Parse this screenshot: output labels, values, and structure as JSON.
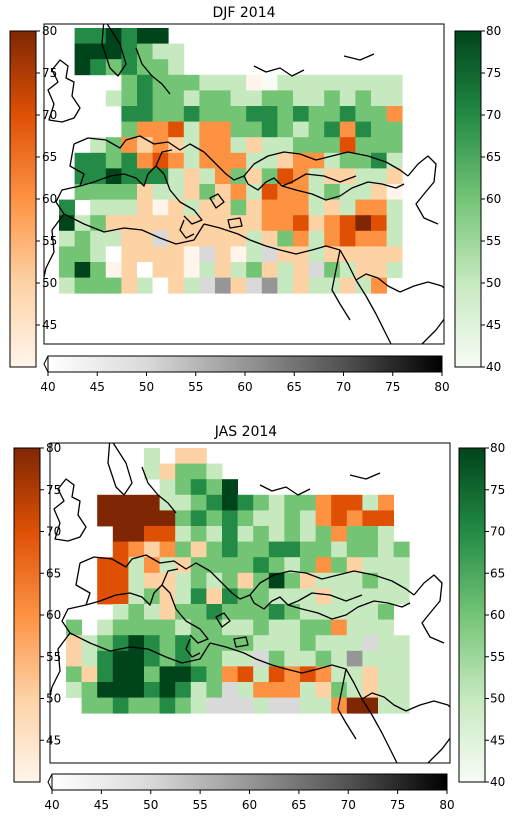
{
  "colors": {
    "oranges": [
      "#fff5eb",
      "#fdd2a5",
      "#fd9243",
      "#df5005",
      "#7f2704"
    ],
    "greens": [
      "#f7fcf5",
      "#c7e9c0",
      "#74c476",
      "#238b45",
      "#00441b"
    ],
    "greys": [
      "#ffffff",
      "#d9d9d9",
      "#969696",
      "#525252",
      "#000000"
    ],
    "coast": "#000000",
    "frame": "#000000"
  },
  "chart_data": [
    {
      "type": "heatmap",
      "title": "DJF 2014",
      "region": "Europe, North Africa and Middle East",
      "value_range": [
        40,
        80
      ],
      "colorbars": [
        {
          "side": "left",
          "colormap": "Oranges",
          "ticks": [
            "45",
            "50",
            "55",
            "60",
            "65",
            "70",
            "75",
            "80"
          ]
        },
        {
          "side": "right",
          "colormap": "Greens",
          "ticks": [
            "40",
            "45",
            "50",
            "55",
            "60",
            "65",
            "70",
            "75",
            "80"
          ]
        },
        {
          "side": "bottom",
          "colormap": "Greys",
          "ticks": [
            "40",
            "45",
            "50",
            "55",
            "60",
            "65",
            "70",
            "75",
            "80"
          ]
        }
      ],
      "grid_legend": "o = Oranges, g = Greens, a = Greys, . = no data; value 0-4 low to high",
      "grid": [
        "...... g3 g3 g4 g3 g4 g4 . . . . . . . . . . . .",
        "...... g4 g4 g4 g3 g2 g1 g1 . . . . . . . . . . .",
        "...... g4 g3 g2 g3 g2 g2 g1 . . . . . . . . . . .",
        ". . . . g2 g3 g2 g2 g2 g1 g1 g1 o0 g0 g1 g1 g1 g1 g1 g1 g1 g1",
        ". . . g1 g2 g3 g2 g2 g1 g2 g2 g1 g1 g2 g2 g1 g1 g2 g1 g2 g1 g1",
        ". . . . g3 g3 g2 g2 g3 g2 g2 g2 g3 g3 g2 g3 g2 g2 g3 g2 g2 o2",
        ". . . . g2 o2 o2 o3 g1 o2 o2 g2 g2 g3 g2 g1 g2 g3 o2 g3 g2 g2",
        ". . g1 g2 o2 o1 o2 o1 g1 o2 o2 g1 o1 g1 g1 g2 g2 g2 o3 g2 g2 g2",
        ". g3 g3 g2 g3 o2 o3 o2 g1 o2 o2 o2 g1 g1 o1 o2 o2 g1 g2 g2 g3 g1",
        ". g3 g3 g4 g3 g3 g3 g1 o1 g1 o2 g2 o1 g2 o3 o2 g1 o1 o1 g1 g1 o1",
        ". g2 g2 g2 g2 o1 g1 g1 o1 g2 o1 o2 g1 o3 o2 o2 g1 g2 g1 g1 o1 o0",
        "g3 . g1 g1 g1 o1 o0 o1 g1 o1 o1 g2 o1 o2 o2 o2 g1 o1 g1 o2 o2 g1",
        "g4 g1 g2 o1 o1 o1 o1 o1 o1 o1 o1 o1 o1 o2 o2 o3 o1 o2 o3 o4 o3 g1",
        "g1 g2 g1 g1 o1 o1 a1 o1 o1 o1 o1 o1 g1 o1 g2 o2 g1 o2 o3 o2 o2 g1",
        "g2 g2 g1 a0 o1 o1 o1 o1 o0 a1 o1 o0 g1 a1 o1 o1 g1 o1 o1 o1 o1 o1",
        "g2 g4 g2 o0 o1 a0 o1 o1 o0 g1 o1 g1 g2 o1 g1 o1 a1 g2 g1 o1 o1 g1",
        "g1 g2 g2 g2 o1 g1 a0 o1 g1 a1 a2 o1 a1 a2 g1 o1 g1 g1 o1 g1 o2 ."
      ]
    },
    {
      "type": "heatmap",
      "title": "JAS 2014",
      "region": "Europe, North Africa and Middle East",
      "value_range": [
        40,
        80
      ],
      "colorbars": [
        {
          "side": "left",
          "colormap": "Oranges",
          "ticks": [
            "45",
            "50",
            "55",
            "60",
            "65",
            "70",
            "75",
            "80"
          ]
        },
        {
          "side": "right",
          "colormap": "Greens",
          "ticks": [
            "40",
            "45",
            "50",
            "55",
            "60",
            "65",
            "70",
            "75",
            "80"
          ]
        },
        {
          "side": "bottom",
          "colormap": "Greys",
          "ticks": [
            "40",
            "45",
            "50",
            "55",
            "60",
            "65",
            "70",
            "75",
            "80"
          ]
        }
      ],
      "grid_legend": "o = Oranges, g = Greens, a = Greys, . = no data; value 0-4 low to high",
      "grid": [
        ". . . . . g1 . o1 o1 . . . . . . . . . . . . .",
        ". . . . . g1 o1 g2 g2 g1 . . . . . . . . . . . .",
        ". . . . . . g1 g2 g3 g2 g4 . . . . . . . . . . .",
        ". . o4 o4 o4 o4 g1 g1 g2 g3 g4 g3 g2 g1 g2 g2 o2 o3 o3 g1 o2 .",
        ". . o4 o4 o4 o4 o4 g2 g3 g2 g3 g2 g1 g1 g2 g1 o2 o3 o2 o3 o3 .",
        ". . . o4 o4 o3 o3 g1 g2 g1 g3 g1 g2 g1 g2 g1 g2 o2 g2 g2 g1 .",
        ". . . o3 o2 o1 o2 g2 o1 g2 g3 g2 g2 g3 g3 g2 g2 g1 g2 g2 g1 g2",
        ". . o3 o3 g1 o2 g1 o1 g2 g2 g2 g2 g3 g2 g1 g2 o2 g2 o1 g1 g1 g1",
        ". . o3 o3 g1 o1 o1 g1 g2 g1 g2 o1 g2 g4 g2 o1 g1 g1 g1 g2 g1 g1",
        ". . o3 o3 g1 g2 o1 g1 g3 o1 g3 g2 g2 g1 g1 g1 o1 g1 g1 g1 g1 g1",
        ". . . g1 g2 g1 o1 g2 g2 g3 g2 g2 g2 g3 g2 g1 g1 g1 g1 g1 g2 .",
        "g2 . g1 g2 g2 g2 g2 g1 g2 g2 g1 g1 g2 g1 g1 g2 g2 o2 g1 g1 g1 .",
        "o1 g1 g2 g3 g4 g3 g2 g3 g2 g2 g2 g2 g1 g1 g1 g2 g1 g1 g1 a1 g1 g1",
        "o1 g1 g3 g4 g4 g3 g2 g3 g2 g2 g1 g1 a1 g2 g1 g1 g2 g1 a2 g1 g1 g1",
        "g2 o1 g3 g4 g4 g2 g4 g4 g3 g2 o2 o3 g1 o3 o2 o3 o2 g1 g1 o1 g1 g1",
        "g1 g2 g4 g4 g4 g3 g4 g3 g1 g2 a1 g1 o2 o2 o2 g1 o1 g2 g1 o1 g1 g1",
        ". g2 g2 g3 g2 g2 g3 g2 g1 a1 a1 a1 g1 a1 a1 g1 g1 o2 o4 o4 g1 g1"
      ]
    }
  ]
}
